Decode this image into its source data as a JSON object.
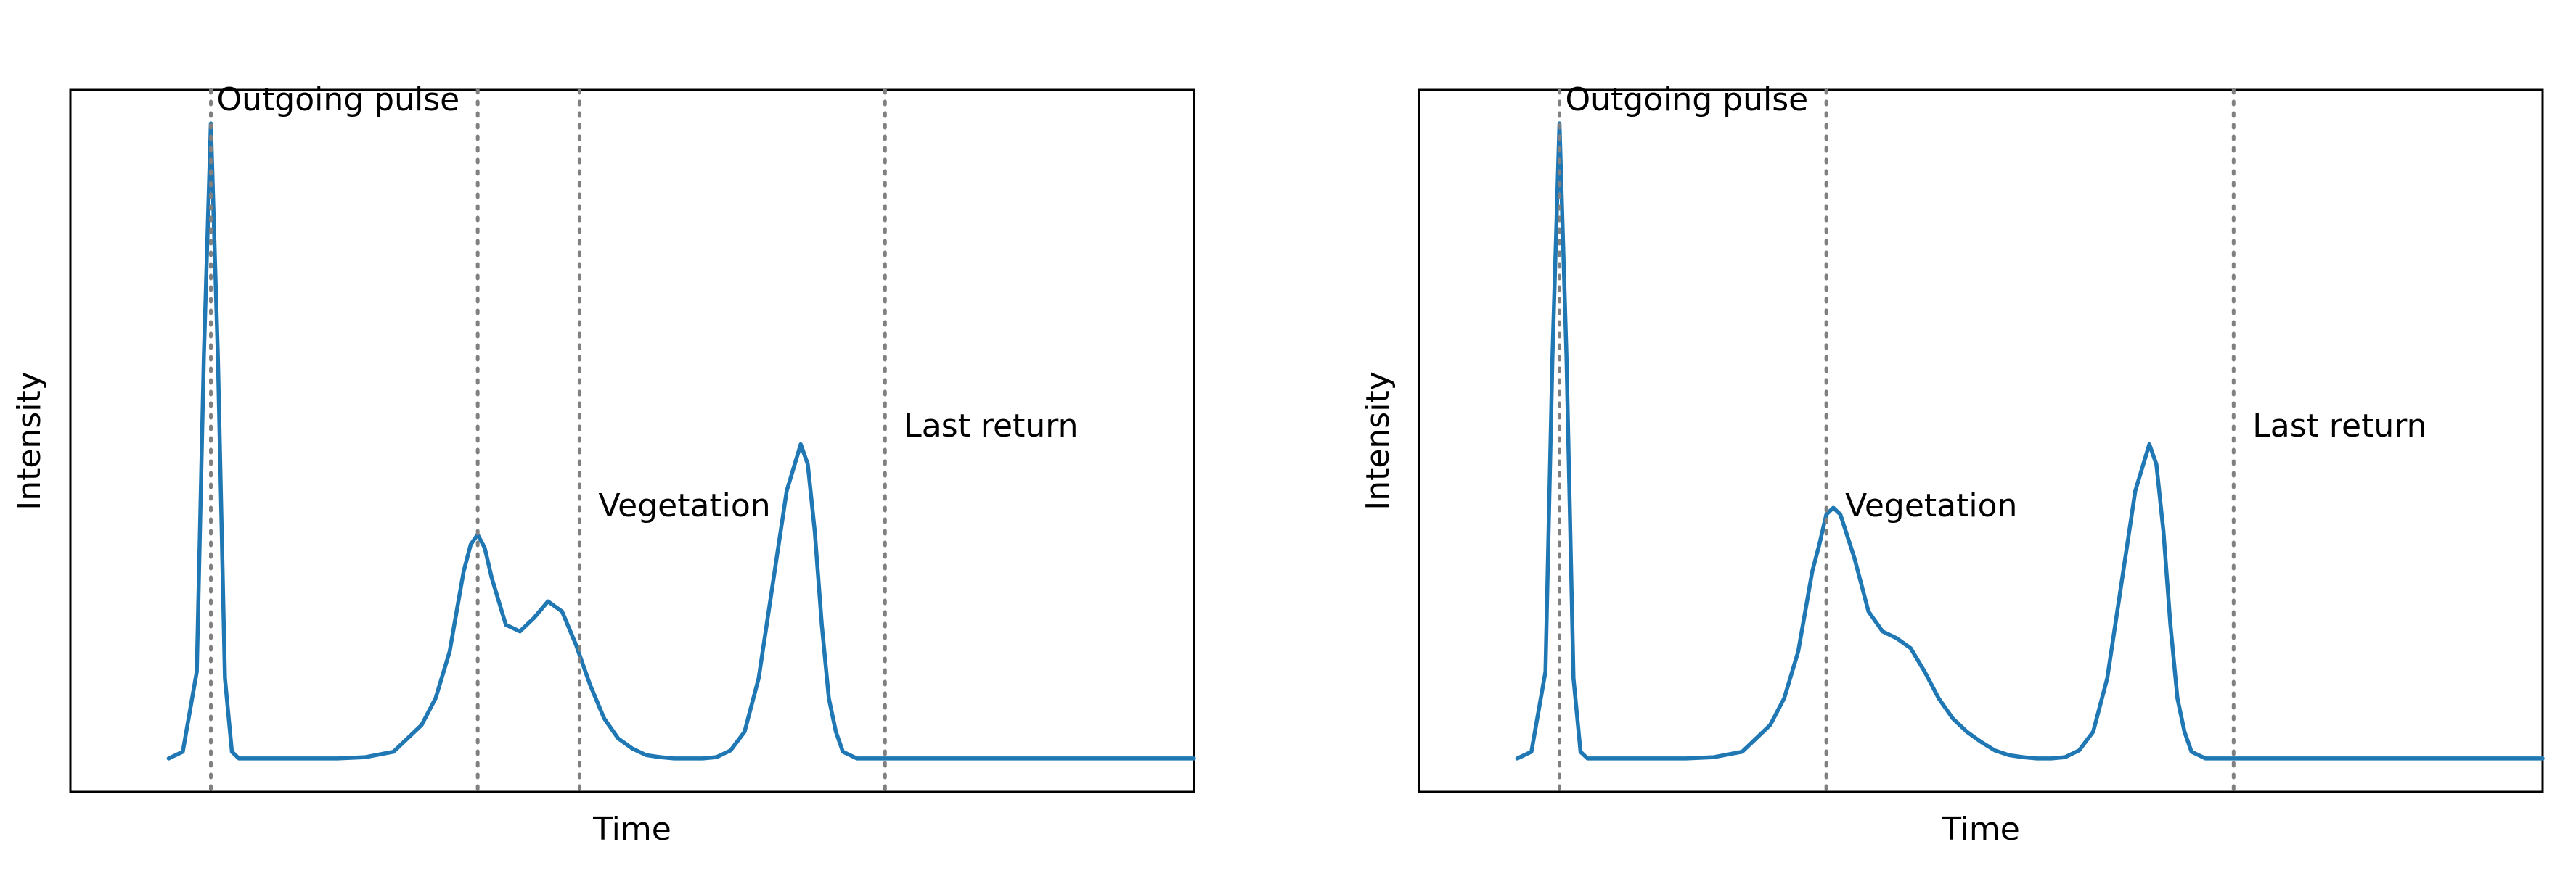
{
  "chart_data": [
    {
      "type": "line",
      "xlabel": "Time",
      "ylabel": "Intensity",
      "xlim": [
        -20,
        140
      ],
      "ylim": [
        -5,
        100
      ],
      "grid": false,
      "line_color": "#1f77b4",
      "marker_color": "#808080",
      "series": [
        {
          "x": [
            -6,
            -4,
            -2,
            -1,
            0,
            1,
            2,
            3,
            4,
            6,
            8,
            10,
            14,
            18,
            22,
            26,
            30,
            32,
            34,
            35,
            36,
            37,
            38,
            39,
            40,
            42,
            44,
            46,
            48,
            50,
            52,
            54,
            56,
            58,
            60,
            62,
            64,
            66,
            68,
            70,
            72,
            74,
            76,
            78,
            80,
            82,
            84,
            85,
            86,
            87,
            88,
            89,
            90,
            92,
            94,
            96,
            98,
            100,
            104,
            108,
            112,
            116,
            120,
            124,
            128,
            132,
            136,
            140
          ],
          "y": [
            0,
            1,
            13,
            60,
            95,
            60,
            12,
            1,
            0,
            0,
            0,
            0,
            0,
            0,
            0.2,
            1,
            5,
            9,
            16,
            22,
            28,
            32,
            33.5,
            31.5,
            27,
            20,
            19,
            21,
            23.5,
            22,
            17,
            11,
            6,
            3,
            1.5,
            0.5,
            0.2,
            0,
            0,
            0,
            0.2,
            1.2,
            4,
            12,
            26,
            40,
            47,
            44,
            34,
            20,
            9,
            4,
            1,
            0,
            0,
            0,
            0,
            0,
            0,
            0,
            0,
            0,
            0,
            0,
            0,
            0,
            0,
            0
          ]
        }
      ],
      "markers": [
        {
          "x": 0,
          "label": "Outgoing pulse"
        },
        {
          "x": 38,
          "label": ""
        },
        {
          "x": 52.5,
          "label": "Vegetation"
        },
        {
          "x": 96,
          "label": "Last return"
        }
      ]
    },
    {
      "type": "line",
      "xlabel": "Time",
      "ylabel": "Intensity",
      "xlim": [
        -20,
        140
      ],
      "ylim": [
        -5,
        100
      ],
      "grid": false,
      "line_color": "#1f77b4",
      "marker_color": "#808080",
      "series": [
        {
          "x": [
            -6,
            -4,
            -2,
            -1,
            0,
            1,
            2,
            3,
            4,
            6,
            8,
            10,
            14,
            18,
            22,
            26,
            30,
            32,
            34,
            35,
            36,
            37,
            38,
            39,
            40,
            42,
            44,
            46,
            48,
            50,
            52,
            54,
            56,
            58,
            60,
            62,
            64,
            66,
            68,
            70,
            72,
            74,
            76,
            78,
            80,
            82,
            84,
            85,
            86,
            87,
            88,
            89,
            90,
            92,
            94,
            96,
            98,
            100,
            104,
            108,
            112,
            116,
            120,
            124,
            128,
            132,
            136,
            140
          ],
          "y": [
            0,
            1,
            13,
            60,
            95,
            60,
            12,
            1,
            0,
            0,
            0,
            0,
            0,
            0,
            0.2,
            1,
            5,
            9,
            16,
            22,
            28,
            32,
            36.5,
            37.5,
            36.5,
            30,
            22,
            19,
            18,
            16.5,
            13,
            9,
            6,
            4,
            2.5,
            1.2,
            0.5,
            0.2,
            0,
            0,
            0.2,
            1.2,
            4,
            12,
            26,
            40,
            47,
            44,
            34,
            20,
            9,
            4,
            1,
            0,
            0,
            0,
            0,
            0,
            0,
            0,
            0,
            0,
            0,
            0,
            0,
            0,
            0,
            0
          ]
        }
      ],
      "markers": [
        {
          "x": 0,
          "label": "Outgoing pulse"
        },
        {
          "x": 38,
          "label": "Vegetation"
        },
        {
          "x": 96,
          "label": "Last return"
        }
      ]
    }
  ]
}
